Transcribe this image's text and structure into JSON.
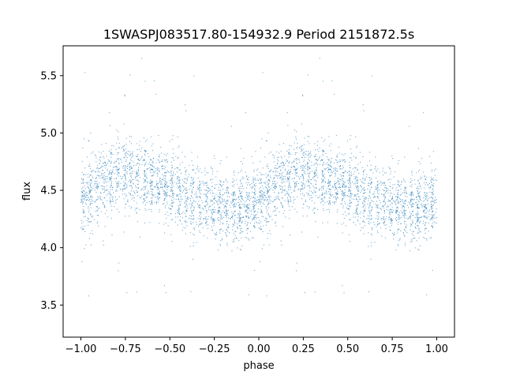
{
  "chart_data": {
    "type": "scatter",
    "title": "1SWASPJ083517.80-154932.9 Period 2151872.5s",
    "xlabel": "phase",
    "ylabel": "flux",
    "xlim": [
      -1.1,
      1.1
    ],
    "ylim": [
      3.22,
      5.76
    ],
    "xticks": [
      -1.0,
      -0.75,
      -0.5,
      -0.25,
      0.0,
      0.25,
      0.5,
      0.75,
      1.0
    ],
    "xtick_labels": [
      "−1.00",
      "−0.75",
      "−0.50",
      "−0.25",
      "0.00",
      "0.25",
      "0.50",
      "0.75",
      "1.00"
    ],
    "yticks": [
      3.5,
      4.0,
      4.5,
      5.0,
      5.5
    ],
    "ytick_labels": [
      "3.5",
      "4.0",
      "4.5",
      "5.0",
      "5.5"
    ],
    "grid": false,
    "marker_color": "#1f77b4",
    "trend": {
      "phase": [
        0.0,
        0.05,
        0.1,
        0.15,
        0.2,
        0.25,
        0.3,
        0.35,
        0.4,
        0.45,
        0.5,
        0.55,
        0.6,
        0.65,
        0.7,
        0.75,
        0.8,
        0.85,
        0.9,
        0.95,
        1.0
      ],
      "flux": [
        4.42,
        4.48,
        4.55,
        4.6,
        4.63,
        4.65,
        4.64,
        4.62,
        4.59,
        4.56,
        4.52,
        4.49,
        4.46,
        4.43,
        4.4,
        4.37,
        4.35,
        4.34,
        4.35,
        4.38,
        4.42
      ]
    },
    "scatter_sigma": 0.15,
    "outlier_range": [
      3.35,
      5.65
    ],
    "n_points_per_cycle": 2200
  }
}
